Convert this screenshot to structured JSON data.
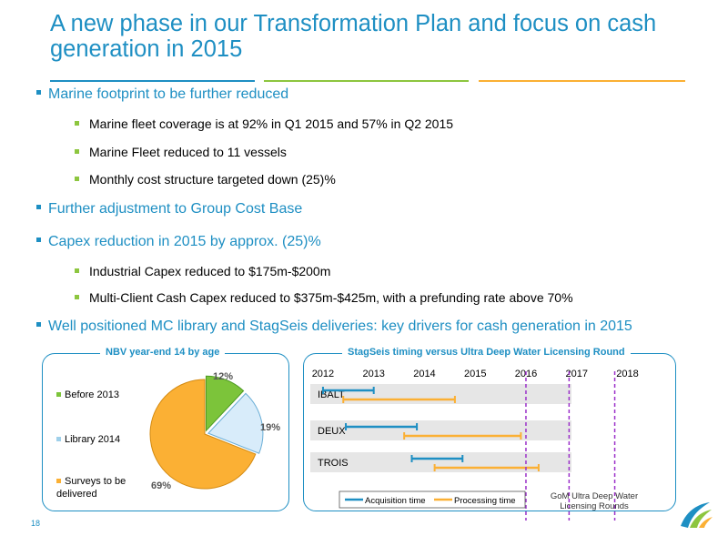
{
  "slide": {
    "title": "A new phase in our Transformation Plan and focus on cash generation in 2015",
    "page_number": "18"
  },
  "bullets": [
    {
      "text": "Marine footprint to be further reduced",
      "sub": [
        "Marine fleet coverage is at 92% in Q1 2015 and 57% in Q2 2015",
        "Marine Fleet reduced to 11 vessels",
        "Monthly cost structure targeted down (25)%"
      ]
    },
    {
      "text": "Further adjustment to Group Cost Base",
      "sub": []
    },
    {
      "text": "Capex reduction in 2015 by approx. (25)%",
      "sub": [
        "Industrial Capex reduced to $175m-$200m",
        "Multi-Client Cash Capex reduced to $375m-$425m, with a prefunding rate above 70%"
      ]
    },
    {
      "text": "Well positioned MC library and StagSeis deliveries: key drivers for cash generation in 2015",
      "sub": []
    }
  ],
  "chart_data": [
    {
      "type": "pie",
      "title": "NBV year-end 14 by age",
      "categories": [
        "Before 2013",
        "Library 2014",
        "Surveys to be delivered"
      ],
      "values": [
        12,
        19,
        69
      ],
      "labels": [
        "12%",
        "19%",
        "69%"
      ],
      "colors": [
        "#7cc43a",
        "#d8ecfa",
        "#fbb034"
      ]
    },
    {
      "type": "gantt",
      "title": "StagSeis timing versus Ultra Deep Water Licensing Round",
      "x_ticks": [
        "2012",
        "2013",
        "2014",
        "2015",
        "2016",
        "2017",
        "2018"
      ],
      "xlim": [
        2011.75,
        2018.35
      ],
      "rows": [
        {
          "name": "IBALT",
          "acquisition": [
            2012.0,
            2013.0
          ],
          "processing": [
            2012.4,
            2014.6
          ]
        },
        {
          "name": "DEUX",
          "acquisition": [
            2012.45,
            2013.85
          ],
          "processing": [
            2013.6,
            2015.9
          ]
        },
        {
          "name": "TROIS",
          "acquisition": [
            2013.75,
            2014.75
          ],
          "processing": [
            2014.2,
            2016.25
          ]
        }
      ],
      "licensing_rounds": [
        2016.0,
        2016.85,
        2017.75
      ],
      "licensing_label": "GoM Ultra Deep Water Licensing Rounds",
      "legend": [
        "Acquisition time",
        "Processing time"
      ],
      "colors": {
        "acquisition": "#1e8fc3",
        "processing": "#fbb034",
        "round": "#9b30c9",
        "row_bg": "#e6e6e6"
      }
    }
  ]
}
